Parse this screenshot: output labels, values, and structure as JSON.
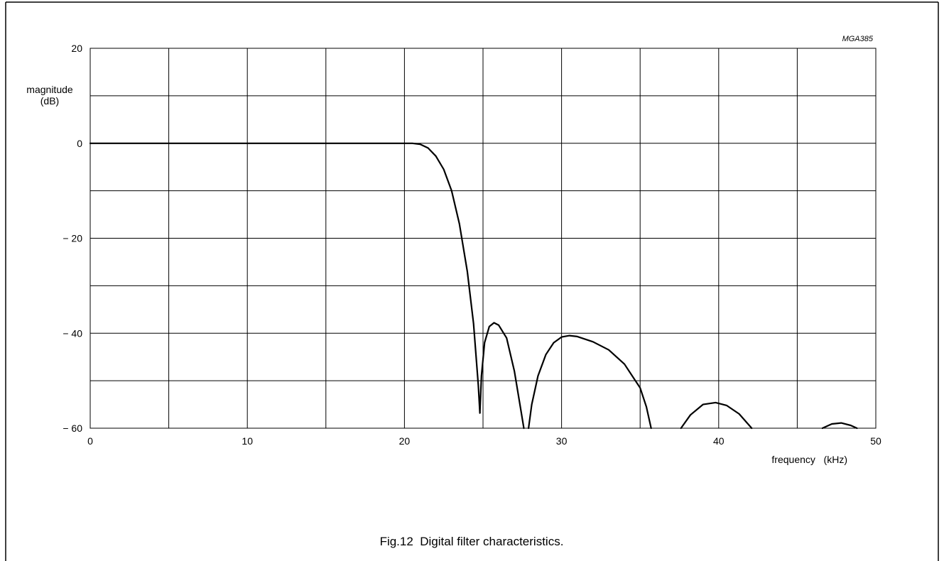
{
  "figure": {
    "code": "MGA385",
    "caption": "Fig.12  Digital filter characteristics."
  },
  "colors": {
    "line": "#000000",
    "grid": "#000000",
    "background": "#ffffff"
  },
  "chart_data": {
    "type": "line",
    "title": "",
    "xlabel": "frequency   (kHz)",
    "ylabel_line1": "magnitude",
    "ylabel_line2": "(dB)",
    "xlim": [
      0,
      50
    ],
    "ylim": [
      -60,
      20
    ],
    "x_gridlines": [
      5,
      10,
      15,
      20,
      25,
      30,
      35,
      40,
      45
    ],
    "y_gridlines": [
      10,
      0,
      -10,
      -20,
      -30,
      -40,
      -50
    ],
    "x_ticks": [
      {
        "value": 0,
        "label": "0"
      },
      {
        "value": 10,
        "label": "10"
      },
      {
        "value": 20,
        "label": "20"
      },
      {
        "value": 30,
        "label": "30"
      },
      {
        "value": 40,
        "label": "40"
      },
      {
        "value": 50,
        "label": "50"
      }
    ],
    "y_ticks": [
      {
        "value": 20,
        "label": "20"
      },
      {
        "value": 0,
        "label": "0"
      },
      {
        "value": -20,
        "label": "− 20"
      },
      {
        "value": -40,
        "label": "− 40"
      },
      {
        "value": -60,
        "label": "− 60"
      }
    ],
    "grid": true,
    "series": [
      {
        "segments": [
          [
            [
              0,
              0
            ],
            [
              5,
              0
            ],
            [
              10,
              0
            ],
            [
              15,
              0
            ],
            [
              19,
              0
            ],
            [
              20,
              0
            ],
            [
              20.5,
              0
            ],
            [
              21,
              -0.2
            ],
            [
              21.5,
              -1
            ],
            [
              22,
              -2.7
            ],
            [
              22.5,
              -5.5
            ],
            [
              23,
              -10
            ],
            [
              23.5,
              -17
            ],
            [
              24,
              -27
            ],
            [
              24.4,
              -38
            ],
            [
              24.7,
              -51
            ],
            [
              24.8,
              -56.8
            ]
          ],
          [
            [
              24.8,
              -56.8
            ],
            [
              24.9,
              -49
            ],
            [
              25.1,
              -42
            ],
            [
              25.4,
              -38.6
            ],
            [
              25.7,
              -37.8
            ],
            [
              26,
              -38.3
            ],
            [
              26.5,
              -41
            ],
            [
              27,
              -48
            ],
            [
              27.4,
              -56
            ],
            [
              27.6,
              -60
            ]
          ],
          [
            [
              27.9,
              -60
            ],
            [
              28.1,
              -55
            ],
            [
              28.5,
              -49
            ],
            [
              29,
              -44.5
            ],
            [
              29.5,
              -42
            ],
            [
              30,
              -40.8
            ],
            [
              30.5,
              -40.5
            ],
            [
              31,
              -40.7
            ],
            [
              32,
              -41.8
            ],
            [
              33,
              -43.5
            ],
            [
              34,
              -46.5
            ],
            [
              35,
              -51.5
            ],
            [
              35.4,
              -55.5
            ],
            [
              35.7,
              -60
            ]
          ],
          [
            [
              37.6,
              -60
            ],
            [
              38.2,
              -57.2
            ],
            [
              39,
              -55
            ],
            [
              39.8,
              -54.6
            ],
            [
              40.5,
              -55.2
            ],
            [
              41.3,
              -57
            ],
            [
              42.1,
              -60
            ]
          ],
          [
            [
              46.6,
              -60
            ],
            [
              47.2,
              -59.1
            ],
            [
              47.8,
              -58.9
            ],
            [
              48.4,
              -59.4
            ],
            [
              48.8,
              -60
            ]
          ]
        ]
      }
    ]
  }
}
